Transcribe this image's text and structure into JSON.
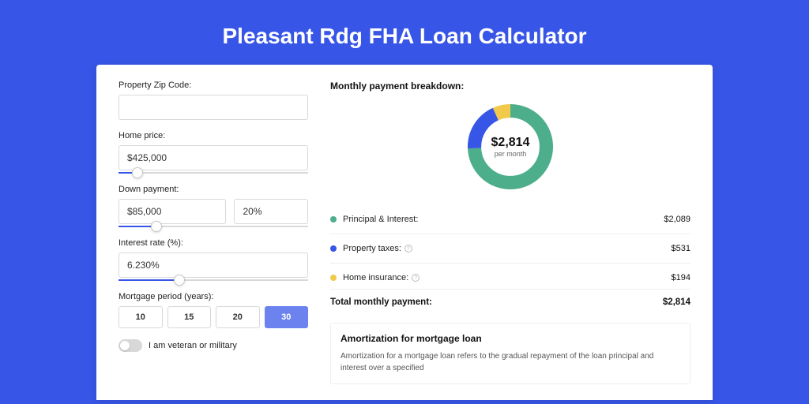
{
  "page": {
    "title": "Pleasant Rdg FHA Loan Calculator",
    "background": "#3755e6"
  },
  "form": {
    "zip": {
      "label": "Property Zip Code:",
      "value": ""
    },
    "home_price": {
      "label": "Home price:",
      "value": "$425,000",
      "slider_percent": 10
    },
    "down_payment": {
      "label": "Down payment:",
      "amount": "$85,000",
      "percent": "20%",
      "slider_percent": 20
    },
    "interest": {
      "label": "Interest rate (%):",
      "value": "6.230%",
      "slider_percent": 32
    },
    "period": {
      "label": "Mortgage period (years):",
      "options": [
        "10",
        "15",
        "20",
        "30"
      ],
      "selected": "30"
    },
    "veteran": {
      "label": "I am veteran or military",
      "on": false
    }
  },
  "breakdown": {
    "title": "Monthly payment breakdown:",
    "donut": {
      "center_value": "$2,814",
      "center_sub": "per month",
      "segments": [
        {
          "name": "principal_interest",
          "value": 2089,
          "color": "#4cae8b"
        },
        {
          "name": "property_taxes",
          "value": 531,
          "color": "#3755e6"
        },
        {
          "name": "home_insurance",
          "value": 194,
          "color": "#f1c94b"
        }
      ],
      "stroke_width": 16
    },
    "items": [
      {
        "label": "Principal & Interest:",
        "amount": "$2,089",
        "color": "#4cae8b",
        "info": false
      },
      {
        "label": "Property taxes:",
        "amount": "$531",
        "color": "#3755e6",
        "info": true
      },
      {
        "label": "Home insurance:",
        "amount": "$194",
        "color": "#f1c94b",
        "info": true
      }
    ],
    "total": {
      "label": "Total monthly payment:",
      "amount": "$2,814"
    }
  },
  "amortization": {
    "title": "Amortization for mortgage loan",
    "text": "Amortization for a mortgage loan refers to the gradual repayment of the loan principal and interest over a specified"
  }
}
